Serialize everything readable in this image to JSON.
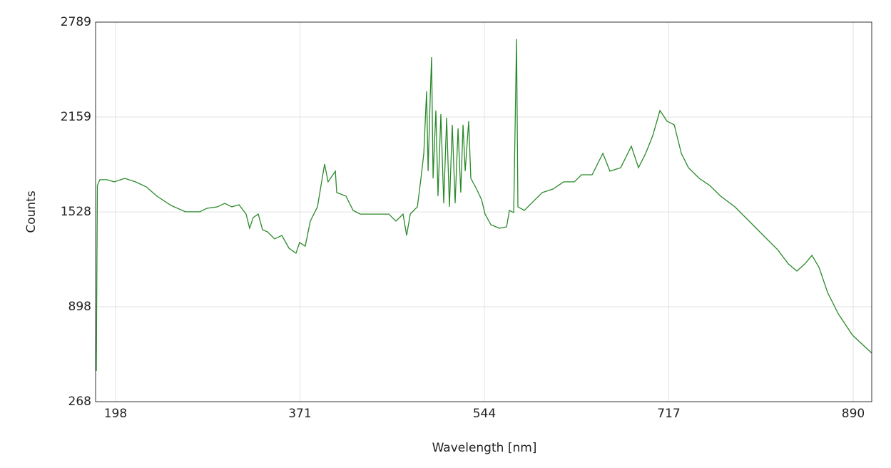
{
  "chart_data": {
    "type": "line",
    "x_label": "Wavelength [nm]",
    "y_label": "Counts",
    "xlim": [
      179.3,
      907.4
    ],
    "ylim": [
      268,
      2789
    ],
    "xticks": [
      198,
      371,
      544,
      717,
      890
    ],
    "yticks": [
      268,
      898,
      1528,
      2159,
      2789
    ],
    "grid": true,
    "series": [
      {
        "color": "#2a8a2a",
        "x": [
          180,
          181,
          183.3,
          190,
          196.7,
          206.7,
          216.7,
          226.8,
          236.8,
          250.2,
          263.6,
          277,
          283.7,
          293.7,
          300.4,
          307.1,
          313.8,
          320.5,
          323.8,
          327.2,
          331.9,
          335.9,
          340.6,
          347.3,
          354,
          360.7,
          367.3,
          370.7,
          376,
          380.7,
          387.4,
          394.1,
          397.4,
          404.2,
          405.5,
          414.2,
          420.9,
          427.6,
          437.6,
          447.7,
          454.4,
          461,
          467.7,
          471.1,
          474.5,
          477.8,
          481.2,
          484.5,
          487.2,
          489.8,
          491.2,
          493.2,
          494.5,
          495.9,
          498.5,
          500.5,
          503.2,
          505.9,
          508.6,
          511.2,
          513.9,
          516.6,
          519.3,
          521.9,
          524,
          526,
          529.3,
          531.3,
          536.7,
          541.4,
          544.7,
          550.1,
          558.1,
          564.8,
          567.5,
          571.5,
          574.2,
          575.5,
          581.5,
          588.2,
          598.3,
          608.3,
          618.4,
          628.4,
          635.1,
          645.1,
          655.2,
          661.8,
          671.9,
          681.9,
          688.6,
          695.3,
          702,
          708.7,
          715.4,
          722.1,
          728.8,
          735.5,
          745.5,
          755.5,
          765.6,
          779,
          792.4,
          805.7,
          819.1,
          829.2,
          837.2,
          844.6,
          851.3,
          858,
          866,
          876.1,
          889.4,
          907.4
        ],
        "values": [
          472,
          1704,
          1742,
          1742,
          1728,
          1751,
          1728,
          1695,
          1633,
          1571,
          1529,
          1529,
          1552,
          1562,
          1585,
          1562,
          1576,
          1514,
          1420,
          1491,
          1514,
          1410,
          1396,
          1349,
          1372,
          1287,
          1254,
          1325,
          1301,
          1467,
          1562,
          1846,
          1728,
          1799,
          1657,
          1633,
          1538,
          1514,
          1514,
          1514,
          1514,
          1467,
          1514,
          1372,
          1514,
          1538,
          1562,
          1751,
          1917,
          2330,
          1799,
          2297,
          2557,
          1751,
          2202,
          1633,
          2178,
          1586,
          2154,
          1562,
          2107,
          1586,
          2083,
          1657,
          2107,
          1799,
          2131,
          1751,
          1680,
          1609,
          1514,
          1443,
          1420,
          1429,
          1538,
          1524,
          2676,
          1562,
          1538,
          1586,
          1657,
          1680,
          1728,
          1728,
          1775,
          1775,
          1917,
          1799,
          1822,
          1965,
          1822,
          1917,
          2036,
          2202,
          2131,
          2107,
          1917,
          1822,
          1751,
          1704,
          1633,
          1562,
          1467,
          1372,
          1277,
          1183,
          1135,
          1183,
          1240,
          1159,
          993,
          851,
          709,
          590
        ]
      }
    ]
  }
}
